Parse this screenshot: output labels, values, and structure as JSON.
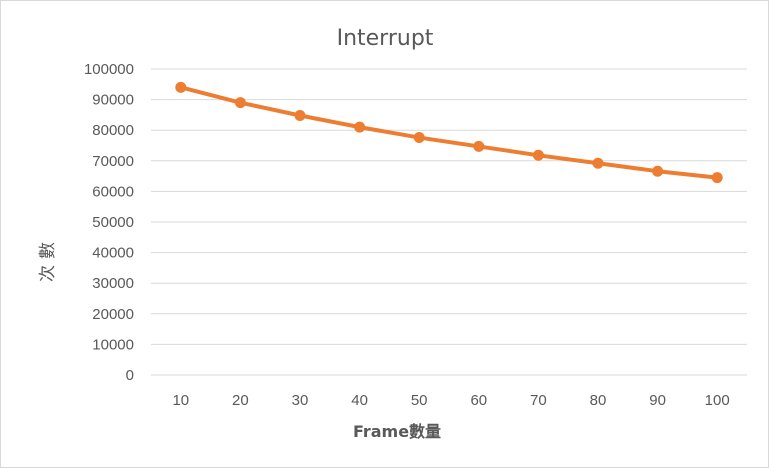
{
  "chart_data": {
    "type": "line",
    "title": "Interrupt",
    "xlabel": "Frame數量",
    "ylabel": "次數",
    "categories": [
      "10",
      "20",
      "30",
      "40",
      "50",
      "60",
      "70",
      "80",
      "90",
      "100"
    ],
    "series": [
      {
        "values": [
          94000,
          89000,
          84800,
          81000,
          77600,
          74700,
          71800,
          69200,
          66600,
          64500
        ],
        "color": "#ED7D31"
      }
    ],
    "ylim": [
      0,
      100000
    ],
    "yticks": [
      "0",
      "10000",
      "20000",
      "30000",
      "40000",
      "50000",
      "60000",
      "70000",
      "80000",
      "90000",
      "100000"
    ],
    "grid": true,
    "legend": "none"
  }
}
